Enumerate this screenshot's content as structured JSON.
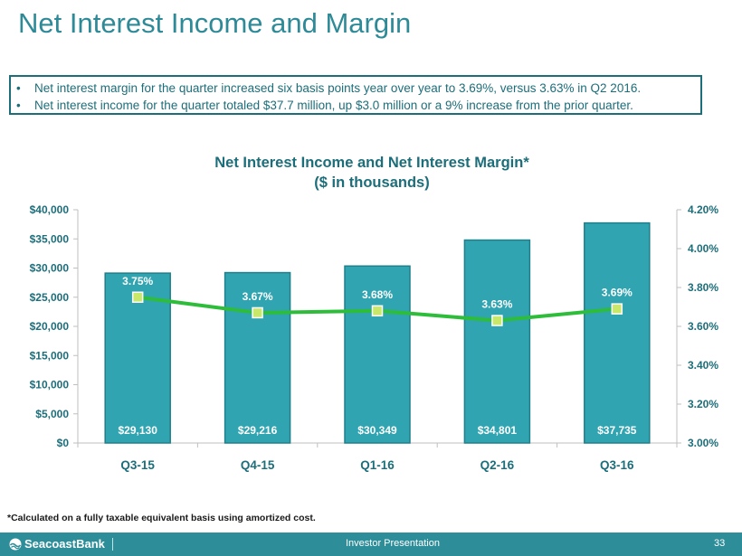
{
  "page": {
    "title": "Net Interest Income and Margin",
    "bullets": [
      "Net interest margin for the quarter increased six basis points year over year to 3.69%, versus 3.63% in Q2 2016.",
      "Net interest income for the quarter totaled $37.7 million, up $3.0 million or a 9% increase from the prior quarter."
    ],
    "footnote": "*Calculated on a fully taxable equivalent basis using amortized cost."
  },
  "footer": {
    "brand": "SeacoastBank",
    "label": "Investor Presentation",
    "page_number": "33"
  },
  "colors": {
    "title": "#2e8a97",
    "bar": "#30a4b1",
    "bar_edge": "#1f7f8b",
    "line": "#2ebd3b",
    "marker": "#c9e86a",
    "footer": "#2d8d99"
  },
  "chart_data": {
    "type": "bar+line",
    "title": "Net Interest Income and Net Interest Margin*",
    "subtitle": "($ in thousands)",
    "categories": [
      "Q3-15",
      "Q4-15",
      "Q1-16",
      "Q2-16",
      "Q3-16"
    ],
    "series": [
      {
        "name": "Net Interest Income",
        "type": "bar",
        "axis": "left",
        "values": [
          29130,
          29216,
          30349,
          34801,
          37735
        ],
        "labels": [
          "$29,130",
          "$29,216",
          "$30,349",
          "$34,801",
          "$37,735"
        ]
      },
      {
        "name": "Net Interest Margin",
        "type": "line",
        "axis": "right",
        "values": [
          3.75,
          3.67,
          3.68,
          3.63,
          3.69
        ],
        "labels": [
          "3.75%",
          "3.67%",
          "3.68%",
          "3.63%",
          "3.69%"
        ]
      }
    ],
    "y_left": {
      "min": 0,
      "max": 40000,
      "ticks": [
        0,
        5000,
        10000,
        15000,
        20000,
        25000,
        30000,
        35000,
        40000
      ],
      "tick_labels": [
        "$0",
        "$5,000",
        "$10,000",
        "$15,000",
        "$20,000",
        "$25,000",
        "$30,000",
        "$35,000",
        "$40,000"
      ]
    },
    "y_right": {
      "min": 3.0,
      "max": 4.2,
      "ticks": [
        3.0,
        3.2,
        3.4,
        3.6,
        3.8,
        4.0,
        4.2
      ],
      "tick_labels": [
        "3.00%",
        "3.20%",
        "3.40%",
        "3.60%",
        "3.80%",
        "4.00%",
        "4.20%"
      ]
    },
    "grid": false,
    "legend": "none"
  }
}
